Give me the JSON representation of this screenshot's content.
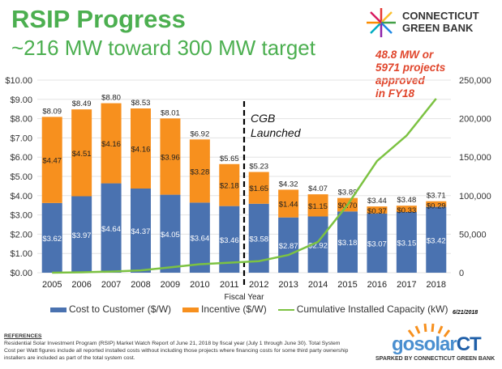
{
  "header": {
    "title": "RSIP Progress",
    "subtitle": "~216 MW toward 300 MW target"
  },
  "logo": {
    "line1": "CONNECTICUT",
    "line2": "GREEN BANK"
  },
  "annotation": [
    "48.8 MW or",
    "5971 projects",
    "approved",
    "in FY18"
  ],
  "chart_data": {
    "type": "bar",
    "stacked": true,
    "categories": [
      "2005",
      "2006",
      "2007",
      "2008",
      "2009",
      "2010",
      "2011",
      "2012",
      "2013",
      "2014",
      "2015",
      "2016",
      "2017",
      "2018"
    ],
    "xlabel": "Fiscal Year",
    "ylim": [
      0,
      10
    ],
    "y_ticks": [
      "$0.00",
      "$1.00",
      "$2.00",
      "$3.00",
      "$4.00",
      "$5.00",
      "$6.00",
      "$7.00",
      "$8.00",
      "$9.00",
      "$10.00"
    ],
    "y2lim": [
      0,
      250000
    ],
    "y2_ticks": [
      "0",
      "50,000",
      "100,000",
      "150,000",
      "200,000",
      "250,000"
    ],
    "grid": true,
    "legend_placement": "bottom",
    "series": [
      {
        "name": "Cost to Customer ($/W)",
        "color": "#4a72b0",
        "values": [
          3.62,
          3.97,
          4.64,
          4.37,
          4.05,
          3.64,
          3.46,
          3.58,
          2.87,
          2.92,
          3.18,
          3.07,
          3.15,
          3.42
        ],
        "labels": [
          "$3.62",
          "$3.97",
          "$4.64",
          "$4.37",
          "$4.05",
          "$3.64",
          "$3.46",
          "$3.58",
          "$2.87",
          "$2.92",
          "$3.18",
          "$3.07",
          "$3.15",
          "$3.42"
        ]
      },
      {
        "name": "Incentive ($/W)",
        "color": "#f7901e",
        "values": [
          4.47,
          4.51,
          4.16,
          4.16,
          3.96,
          3.28,
          2.18,
          1.65,
          1.44,
          1.15,
          0.7,
          0.37,
          0.33,
          0.29
        ],
        "labels": [
          "$4.47",
          "$4.51",
          "$4.16",
          "$4.16",
          "$3.96",
          "$3.28",
          "$2.18",
          "$1.65",
          "$1.44",
          "$1.15",
          "$0.70",
          "$0.37",
          "$0.33",
          "$0.29"
        ]
      },
      {
        "name": "Cumulative Installed Capacity (kW)",
        "type": "line",
        "axis": "right",
        "color": "#7cc242",
        "values": [
          0,
          500,
          1500,
          3000,
          7000,
          11000,
          13000,
          15000,
          23000,
          40000,
          88000,
          145000,
          178000,
          226000
        ]
      }
    ],
    "totals": [
      "$8.09",
      "$8.49",
      "$8.80",
      "$8.53",
      "$8.01",
      "$6.92",
      "$5.65",
      "$5.23",
      "$4.32",
      "$4.07",
      "$3.89",
      "$3.44",
      "$3.48",
      "$3.71"
    ],
    "marker": {
      "after": "2011",
      "label": [
        "CGB",
        "Launched"
      ]
    }
  },
  "date": "6/21/2018",
  "references": {
    "heading": "REFERENCES",
    "text": "Residential Solar Investment Program (RSIP) Market Watch Report of June 21, 2018 by fiscal year (July 1 through June 30). Total System Cost per Watt figures include all reported installed costs without including those projects where financing costs for some third party ownership installers are included as part of the total system cost."
  },
  "gosolar": {
    "brand1": "gosolar",
    "brand2": "CT",
    "tagline": "SPARKED BY CONNECTICUT GREEN BANK"
  }
}
